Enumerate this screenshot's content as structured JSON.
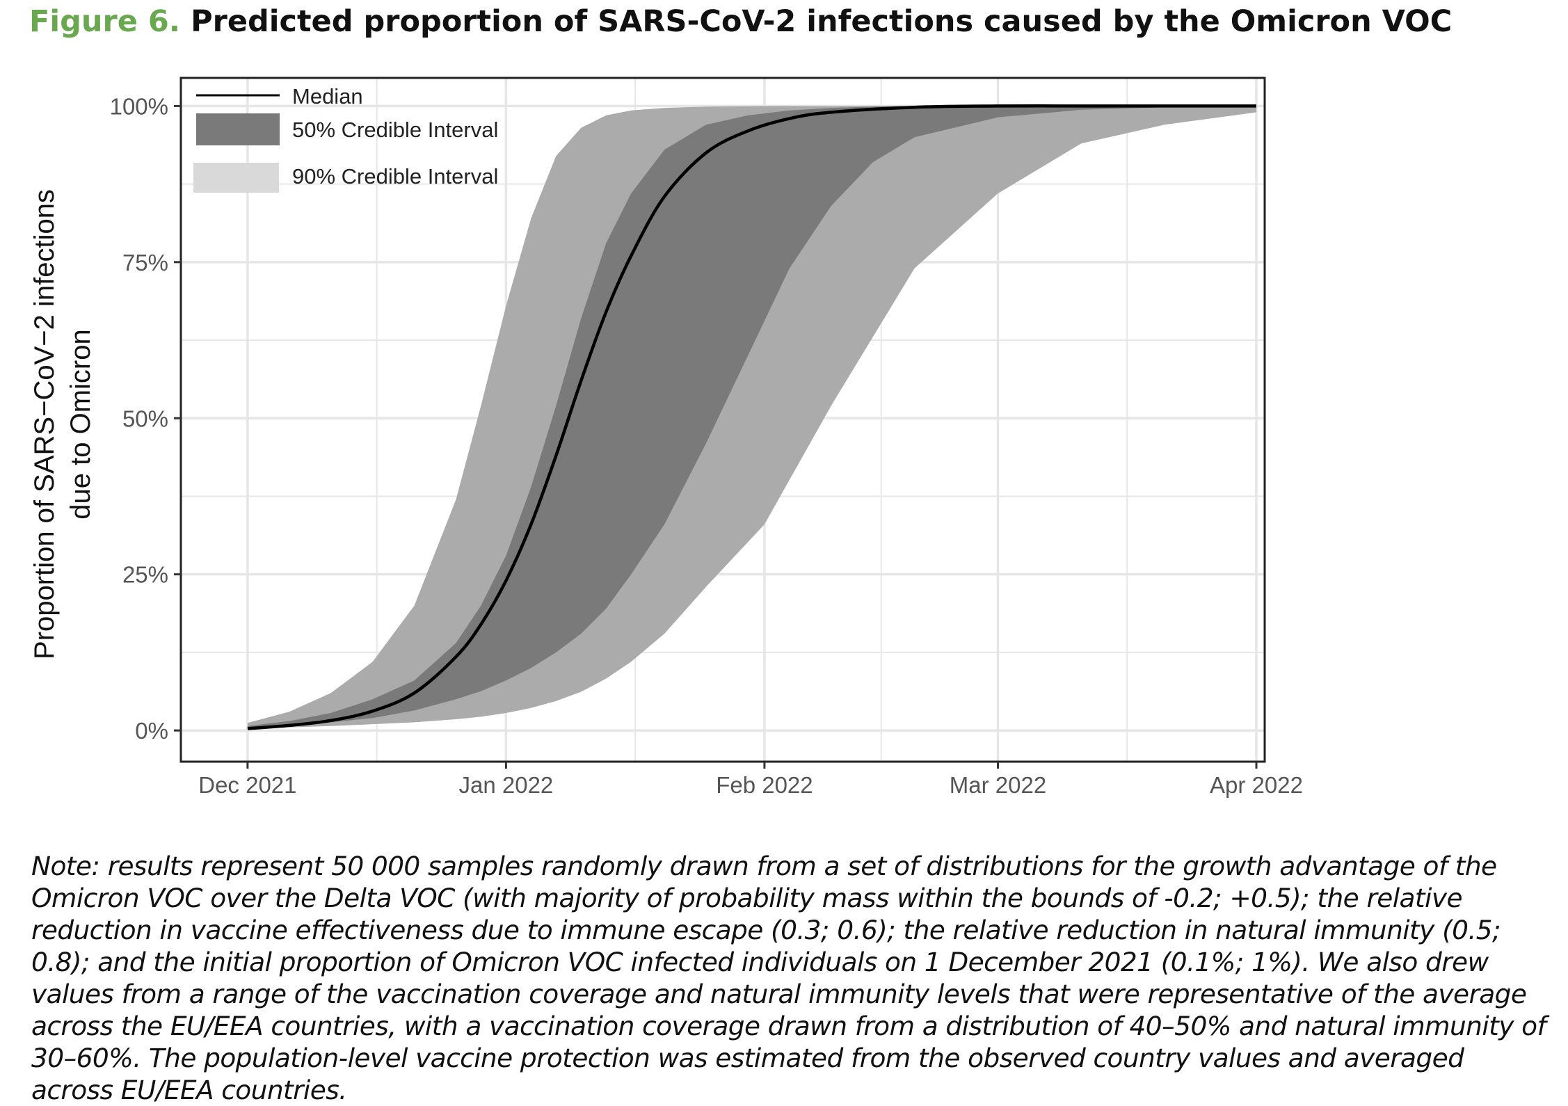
{
  "figure": {
    "number": "Figure 6.",
    "title": "Predicted proportion of SARS-CoV-2 infections caused by the Omicron VOC",
    "note": "Note: results represent 50 000 samples randomly drawn from a set of distributions for the growth advantage of the Omicron VOC over the Delta VOC (with majority of probability mass within the bounds of -0.2; +0.5); the relative reduction in vaccine effectiveness due to immune escape (0.3; 0.6); the relative reduction in natural immunity (0.5; 0.8); and the initial proportion of Omicron VOC infected individuals on 1 December 2021 (0.1%; 1%). We also drew values from a range of the vaccination coverage and natural immunity levels that were representative of the average across the EU/EEA countries, with a vaccination coverage drawn from a distribution of 40–50% and natural immunity of 30–60%. The population-level vaccine protection was estimated from the observed country values and averaged across EU/EEA countries."
  },
  "chart_data": {
    "type": "area",
    "ylabel_line1": "Proportion of SARS−CoV−2 infections",
    "ylabel_line2": "due to Omicron",
    "x_unit": "days since 1 Dec 2021",
    "xlim": [
      -8,
      122
    ],
    "ylim": [
      -0.05,
      1.045
    ],
    "x_ticks": [
      {
        "day": 0,
        "label": "Dec 2021"
      },
      {
        "day": 31,
        "label": "Jan 2022"
      },
      {
        "day": 62,
        "label": "Feb 2022"
      },
      {
        "day": 90,
        "label": "Mar 2022"
      },
      {
        "day": 121,
        "label": "Apr 2022"
      }
    ],
    "x_minor_grid": [
      15.5,
      46.5,
      76,
      105.5
    ],
    "y_ticks": [
      {
        "value": 0,
        "label": "0%"
      },
      {
        "value": 0.25,
        "label": "25%"
      },
      {
        "value": 0.5,
        "label": "50%"
      },
      {
        "value": 0.75,
        "label": "75%"
      },
      {
        "value": 1.0,
        "label": "100%"
      }
    ],
    "legend": {
      "position": "top-left",
      "median_label": "Median",
      "ci50_label": "50% Credible Interval",
      "ci90_label": "90% Credible Interval"
    },
    "colors": {
      "ci90": "#ababab",
      "ci50": "#7a7a7a",
      "median": "#000000",
      "legend_ci90": "#d9d9d9",
      "grid": "#e6e6e6"
    },
    "series": [
      {
        "name": "90% Credible Interval",
        "x": [
          0,
          5,
          10,
          15,
          20,
          25,
          28,
          31,
          34,
          37,
          40,
          43,
          46,
          50,
          55,
          62,
          70,
          80,
          90,
          100,
          110,
          121
        ],
        "lower": [
          0.003,
          0.005,
          0.007,
          0.01,
          0.013,
          0.018,
          0.022,
          0.028,
          0.036,
          0.047,
          0.062,
          0.083,
          0.11,
          0.155,
          0.23,
          0.33,
          0.52,
          0.74,
          0.86,
          0.94,
          0.97,
          0.99
        ],
        "upper": [
          0.012,
          0.03,
          0.06,
          0.11,
          0.2,
          0.37,
          0.52,
          0.68,
          0.82,
          0.92,
          0.965,
          0.985,
          0.993,
          0.997,
          0.999,
          1.0,
          1.0,
          1.0,
          1.0,
          1.0,
          1.0,
          1.0
        ]
      },
      {
        "name": "50% Credible Interval",
        "x": [
          0,
          5,
          10,
          15,
          20,
          25,
          28,
          31,
          34,
          37,
          40,
          43,
          46,
          50,
          55,
          60,
          65,
          70,
          75,
          80,
          90,
          100,
          110,
          121
        ],
        "lower": [
          0.004,
          0.008,
          0.013,
          0.02,
          0.032,
          0.05,
          0.063,
          0.08,
          0.1,
          0.125,
          0.155,
          0.195,
          0.25,
          0.33,
          0.46,
          0.6,
          0.74,
          0.84,
          0.91,
          0.95,
          0.982,
          0.994,
          0.998,
          1.0
        ],
        "upper": [
          0.007,
          0.015,
          0.028,
          0.05,
          0.08,
          0.14,
          0.2,
          0.28,
          0.39,
          0.52,
          0.66,
          0.78,
          0.86,
          0.93,
          0.97,
          0.985,
          0.993,
          0.997,
          0.999,
          1.0,
          1.0,
          1.0,
          1.0,
          1.0
        ]
      },
      {
        "name": "Median",
        "x": [
          0,
          5,
          10,
          15,
          20,
          25,
          28,
          31,
          34,
          37,
          40,
          43,
          46,
          50,
          55,
          60,
          65,
          70,
          80,
          90,
          100,
          110,
          121
        ],
        "y": [
          0.003,
          0.008,
          0.016,
          0.031,
          0.06,
          0.118,
          0.17,
          0.24,
          0.33,
          0.44,
          0.56,
          0.67,
          0.76,
          0.855,
          0.925,
          0.96,
          0.98,
          0.99,
          0.998,
          1.0,
          1.0,
          1.0,
          1.0
        ]
      }
    ]
  }
}
